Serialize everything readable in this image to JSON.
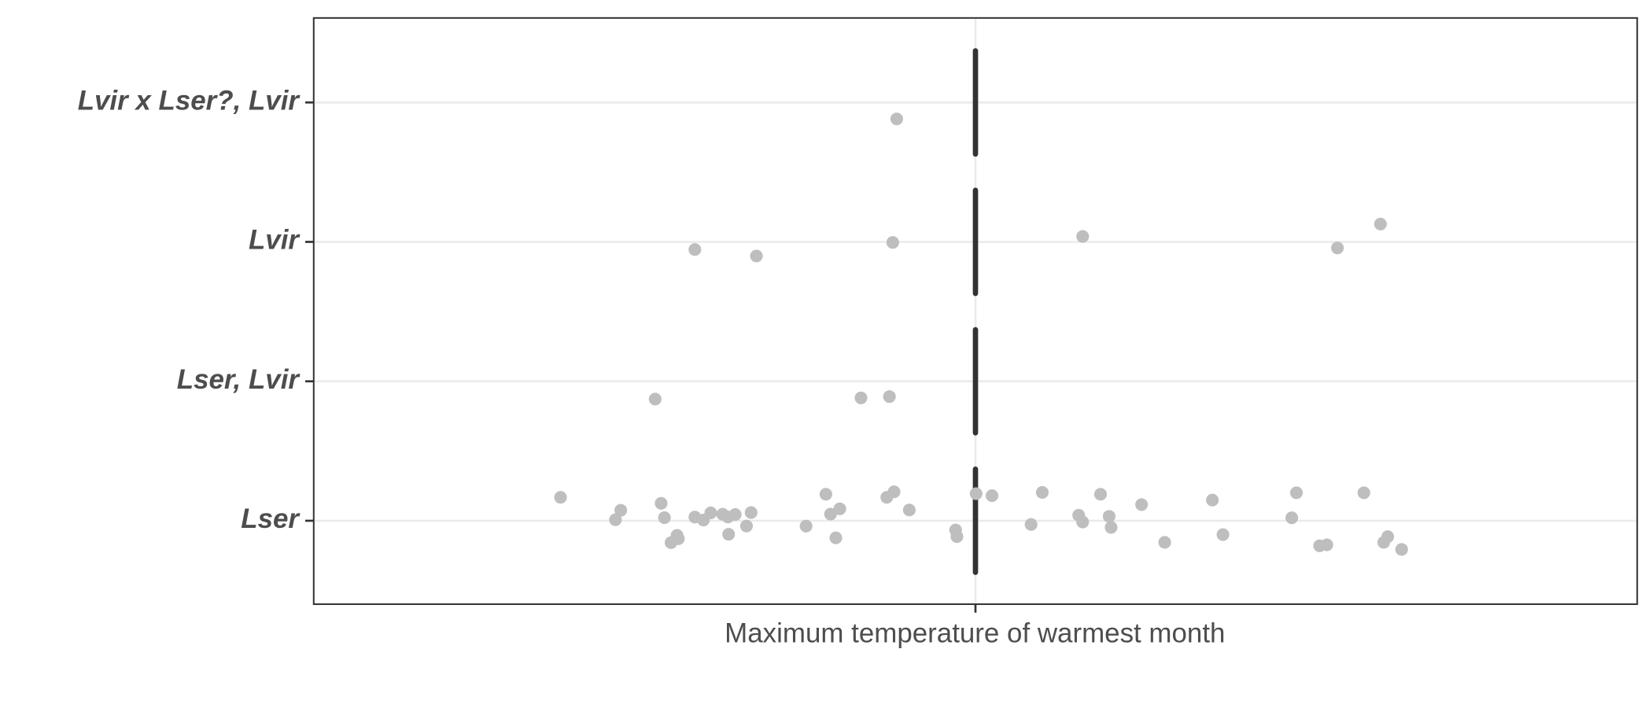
{
  "chart_data": {
    "type": "strip",
    "x_label": "Maximum temperature of warmest month",
    "categories": [
      "Lser",
      "Lser, Lvir",
      "Lvir",
      "Lvir x Lser?, Lvir"
    ],
    "values": [
      [
        -0.627,
        -0.544,
        -0.536,
        -0.47,
        -0.475,
        -0.46,
        -0.449,
        -0.451,
        -0.424,
        -0.411,
        -0.4,
        -0.382,
        -0.373,
        -0.374,
        -0.363,
        -0.346,
        -0.339,
        -0.256,
        -0.226,
        -0.219,
        -0.211,
        -0.205,
        -0.134,
        -0.123,
        -0.1,
        -0.03,
        -0.028,
        0.001,
        0.025,
        0.084,
        0.101,
        0.156,
        0.162,
        0.189,
        0.202,
        0.205,
        0.251,
        0.286,
        0.358,
        0.374,
        0.478,
        0.485,
        0.52,
        0.531,
        0.587,
        0.617,
        0.623,
        0.644
      ],
      [
        -0.484,
        -0.173,
        -0.13
      ],
      [
        -0.424,
        -0.331,
        -0.125,
        0.162,
        0.547,
        0.612
      ],
      [
        -0.119
      ]
    ],
    "reference": 0,
    "color": "#bebebe",
    "reference_color": "#333333",
    "xlim": [
      -1,
      1
    ],
    "xticks": [
      0
    ],
    "grid": true
  }
}
